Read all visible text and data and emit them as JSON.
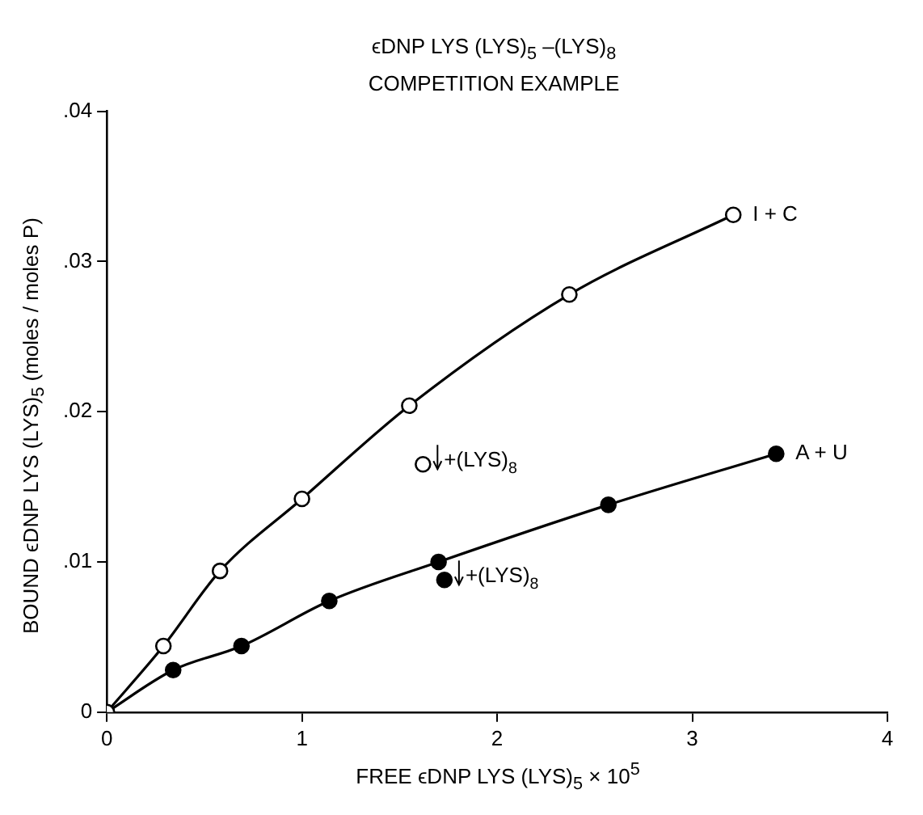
{
  "chart_data": {
    "type": "line",
    "title": "ϵDNP LYS (LYS)$_{5}$ –(LYS)$_{8}$",
    "subtitle": "COMPETITION EXAMPLE",
    "xlabel": "FREE ϵDNP LYS (LYS)$_{5}$ × 10$^{5}$",
    "ylabel": "BOUND ϵDNP LYS (LYS)$_{5}$ (moles / moles P)",
    "xlim": [
      0,
      4
    ],
    "xticks": [
      0,
      1,
      2,
      3,
      4
    ],
    "ylim": [
      0,
      0.04
    ],
    "yticks": [
      {
        "value": 0,
        "label": "0"
      },
      {
        "value": 0.01,
        "label": ".01"
      },
      {
        "value": 0.02,
        "label": ".02"
      },
      {
        "value": 0.03,
        "label": ".03"
      },
      {
        "value": 0.04,
        "label": ".04"
      }
    ],
    "grid": false,
    "legend": false,
    "marker": "circle",
    "line_style": "solid",
    "series": [
      {
        "name": "I + C",
        "color": "#000000",
        "x": [
          0,
          0.29,
          0.58,
          1.0,
          1.55,
          2.37,
          3.21
        ],
        "values": [
          0,
          0.0044,
          0.0094,
          0.0142,
          0.0204,
          0.0278,
          0.0331
        ]
      },
      {
        "name": "A + U",
        "color": "#000000",
        "x": [
          0,
          0.34,
          0.69,
          1.14,
          1.7,
          2.57,
          3.43
        ],
        "values": [
          0,
          0.0028,
          0.0044,
          0.0074,
          0.01,
          0.0138,
          0.0172
        ]
      },
      {
        "type": "scatter",
        "color": "#000000",
        "x": [
          1.62
        ],
        "values": [
          0.0165
        ]
      },
      {
        "type": "scatter",
        "color": "#000000",
        "x": [
          1.73
        ],
        "values": [
          0.0088
        ]
      }
    ],
    "annotations": [
      {
        "text": "+(LYS)$_{8}$",
        "x": 1.62,
        "y": 0.0165
      },
      {
        "text": "+(LYS)$_{8}$",
        "x": 1.73,
        "y": 0.0088
      }
    ]
  }
}
